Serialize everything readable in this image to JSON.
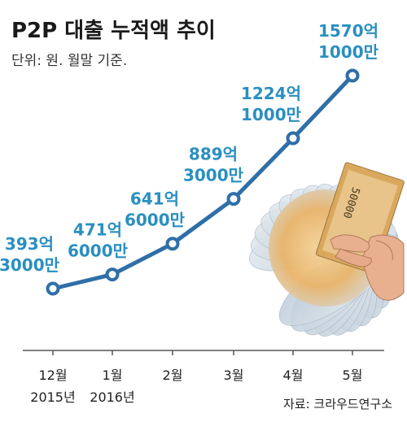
{
  "header": {
    "title": "P2P 대출 누적액 추이",
    "subtitle": "단위: 원. 월말 기준."
  },
  "source": "자료: 크라우드연구소",
  "colors": {
    "accent": "#2a8fc0",
    "line": "#2e6fa8",
    "text": "#1a1a1a"
  },
  "chart_data": {
    "type": "line",
    "categories": [
      "12월",
      "1월",
      "2월",
      "3월",
      "4월",
      "5월"
    ],
    "year_labels": [
      "2015년",
      "2016년",
      "",
      "",
      "",
      ""
    ],
    "values": [
      39330000000,
      47160000000,
      64160000000,
      88930000000,
      122410000000,
      157010000000
    ],
    "data_labels": [
      [
        "393억",
        "3000만"
      ],
      [
        "471억",
        "6000만"
      ],
      [
        "641억",
        "6000만"
      ],
      [
        "889억",
        "3000만"
      ],
      [
        "1224억",
        "1000만"
      ],
      [
        "1570억",
        "1000만"
      ]
    ],
    "title": "P2P 대출 누적액 추이",
    "ylabel": "",
    "xlabel": "",
    "grid": false,
    "legend": "none"
  },
  "illustration": {
    "icon": "banknote-fan-icon",
    "banknote_text": "50000"
  }
}
